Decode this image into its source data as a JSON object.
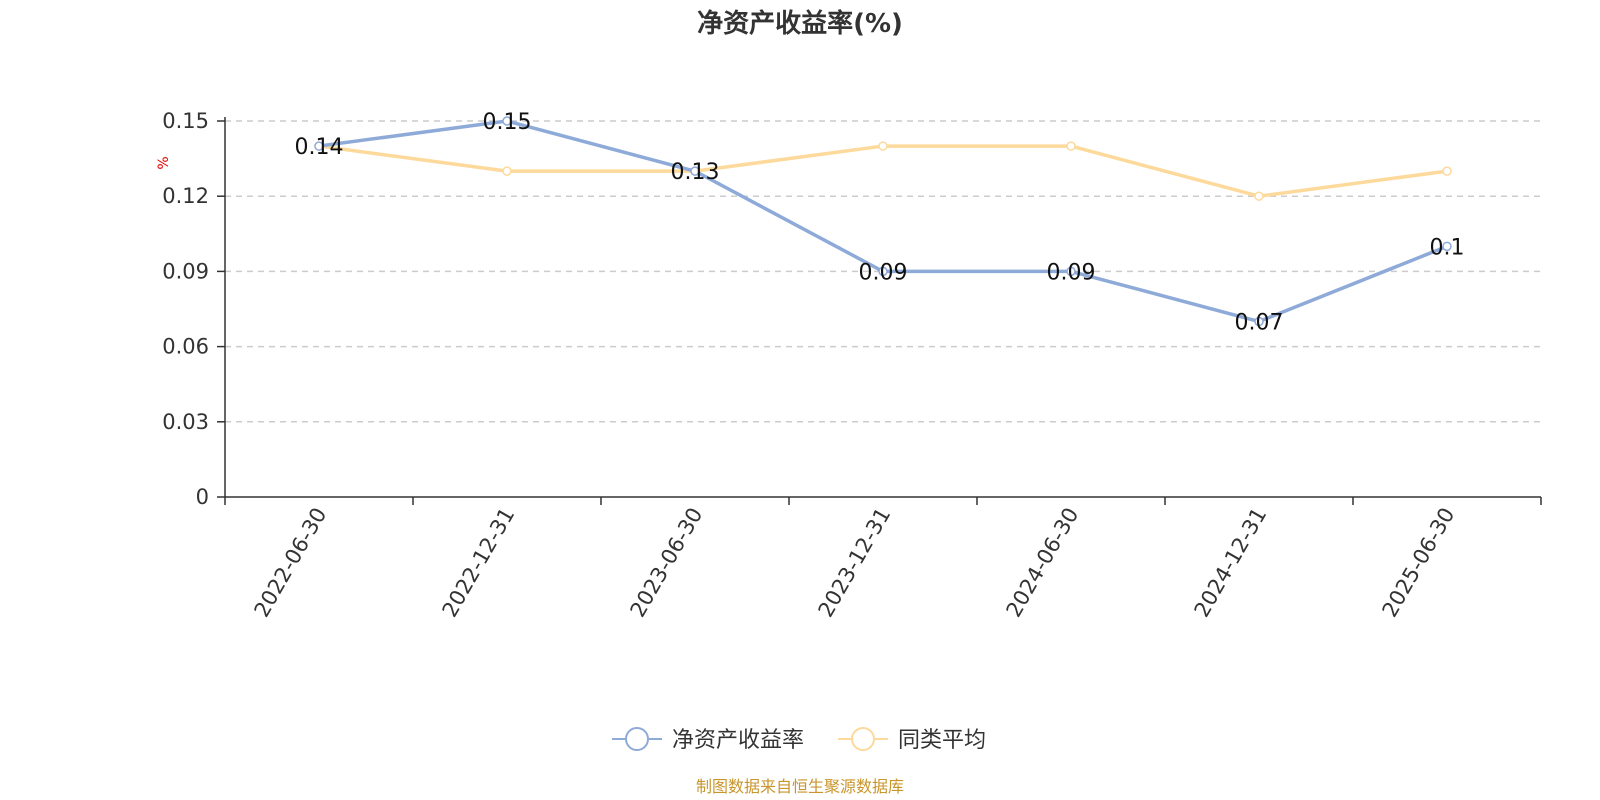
{
  "chart_data": {
    "type": "line",
    "title": "净资产收益率(%)",
    "ylabel": "%",
    "xlabel": "",
    "categories": [
      "2022-06-30",
      "2022-12-31",
      "2023-06-30",
      "2023-12-31",
      "2024-06-30",
      "2024-12-31",
      "2025-06-30"
    ],
    "series": [
      {
        "name": "净资产收益率",
        "values": [
          0.14,
          0.15,
          0.13,
          0.09,
          0.09,
          0.07,
          0.1
        ],
        "data_labels": [
          "0.14",
          "0.15",
          "0.13",
          "0.09",
          "0.09",
          "0.07",
          "0.1"
        ],
        "color": "#8eaad8"
      },
      {
        "name": "同类平均",
        "values": [
          0.14,
          0.13,
          0.13,
          0.14,
          0.14,
          0.12,
          0.13
        ],
        "color": "#fdd99b"
      }
    ],
    "yticks": [
      0,
      0.03,
      0.06,
      0.09,
      0.12,
      0.15
    ],
    "ytick_labels": [
      "0",
      "0.03",
      "0.06",
      "0.09",
      "0.12",
      "0.15"
    ],
    "ylim": [
      0,
      0.15
    ],
    "grid": true,
    "legend_position": "bottom"
  },
  "source_note": "制图数据来自恒生聚源数据库",
  "colors": {
    "axis": "#333333",
    "grid": "#cccccc",
    "unit": "#e60000",
    "source": "#c8962c"
  }
}
